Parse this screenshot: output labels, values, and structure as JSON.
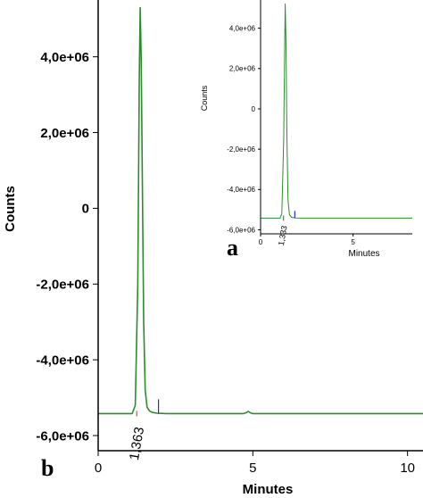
{
  "colors": {
    "trace": "#2e8b2e",
    "axis": "#000000",
    "baseline_mark": "#c0504d",
    "end_mark": "#2b2bd6",
    "background": "#ffffff"
  },
  "chart_data": [
    {
      "panel": "b",
      "type": "line",
      "xlabel": "Minutes",
      "ylabel": "Counts",
      "xlim": [
        0,
        10.5
      ],
      "ylim": [
        -6400000.0,
        5500000.0
      ],
      "x_ticks": [
        "0",
        "5",
        "10"
      ],
      "x_tick_values": [
        0,
        5,
        10
      ],
      "y_ticks": [
        "4,0e+06",
        "2,0e+06",
        "0",
        "-2,0e+06",
        "-4,0e+06",
        "-6,0e+06"
      ],
      "y_tick_values": [
        4000000,
        2000000,
        0,
        -2000000,
        -4000000,
        -6000000
      ],
      "peak_label": "1,363",
      "peak_label_value": 1.363,
      "series": [
        {
          "x": [
            0,
            1.1,
            1.2,
            1.28,
            1.33,
            1.36,
            1.39,
            1.43,
            1.47,
            1.52,
            1.58,
            1.66,
            1.75,
            1.9,
            2.2,
            4.7,
            4.8,
            4.85,
            4.92,
            5.0,
            7.0,
            10.5
          ],
          "values": [
            -5420000.0,
            -5420000.0,
            -5200000.0,
            -2000000.0,
            3500000.0,
            5300000.0,
            4000000.0,
            500000.0,
            -3000000.0,
            -4800000.0,
            -5250000.0,
            -5350000.0,
            -5390000.0,
            -5410000.0,
            -5420000.0,
            -5420000.0,
            -5390000.0,
            -5360000.0,
            -5400000.0,
            -5420000.0,
            -5420000.0,
            -5420000.0
          ]
        }
      ],
      "end_marker_x": 1.95
    },
    {
      "panel": "a",
      "type": "line",
      "xlabel": "Minutes",
      "ylabel": "Counts",
      "xlim": [
        0,
        8.2
      ],
      "ylim": [
        -6200000.0,
        5400000.0
      ],
      "x_ticks": [
        "0",
        "5"
      ],
      "x_tick_values": [
        0,
        5
      ],
      "y_ticks": [
        "4,0e+06",
        "2,0e+06",
        "0",
        "-2,0e+06",
        "-4,0e+06",
        "-6,0e+06"
      ],
      "y_tick_values": [
        4000000,
        2000000,
        0,
        -2000000,
        -4000000,
        -6000000
      ],
      "peak_label": "1,333",
      "peak_label_value": 1.333,
      "series": [
        {
          "x": [
            0,
            1.05,
            1.15,
            1.25,
            1.3,
            1.33,
            1.37,
            1.42,
            1.48,
            1.56,
            1.68,
            1.9,
            2.3,
            8.2
          ],
          "values": [
            -5420000.0,
            -5420000.0,
            -5200000.0,
            -1500000.0,
            3000000.0,
            5200000.0,
            3500000.0,
            -1000000.0,
            -4500000.0,
            -5250000.0,
            -5380000.0,
            -5410000.0,
            -5420000.0,
            -5420000.0
          ]
        }
      ],
      "end_marker_x": 1.85
    }
  ]
}
